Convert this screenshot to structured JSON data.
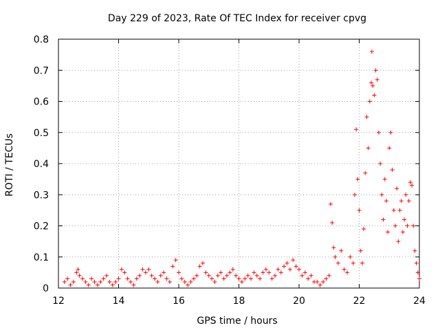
{
  "chart_data": {
    "type": "scatter",
    "title": "Day 229 of 2023, Rate Of TEC Index for receiver cpvg",
    "xlabel": "GPS time / hours",
    "ylabel": "ROTI / TECUs",
    "xlim": [
      12,
      24
    ],
    "ylim": [
      0,
      0.8
    ],
    "xticks": [
      "12",
      "14",
      "16",
      "18",
      "20",
      "22",
      "24"
    ],
    "xtick_values": [
      12,
      14,
      16,
      18,
      20,
      22,
      24
    ],
    "yticks": [
      "0",
      "0.1",
      "0.2",
      "0.3",
      "0.4",
      "0.5",
      "0.6",
      "0.7",
      "0.8"
    ],
    "ytick_values": [
      0,
      0.1,
      0.2,
      0.3,
      0.4,
      0.5,
      0.6,
      0.7,
      0.8
    ],
    "grid": true,
    "marker": "+",
    "color": "#ff0000",
    "series": [
      {
        "name": "ROTI",
        "points": [
          [
            12.2,
            0.02
          ],
          [
            12.3,
            0.03
          ],
          [
            12.4,
            0.01
          ],
          [
            12.5,
            0.02
          ],
          [
            12.6,
            0.05
          ],
          [
            12.65,
            0.06
          ],
          [
            12.7,
            0.04
          ],
          [
            12.8,
            0.03
          ],
          [
            12.9,
            0.02
          ],
          [
            13.0,
            0.01
          ],
          [
            13.1,
            0.03
          ],
          [
            13.2,
            0.02
          ],
          [
            13.3,
            0.01
          ],
          [
            13.4,
            0.02
          ],
          [
            13.5,
            0.03
          ],
          [
            13.6,
            0.04
          ],
          [
            13.7,
            0.02
          ],
          [
            13.8,
            0.01
          ],
          [
            13.9,
            0.02
          ],
          [
            14.0,
            0.03
          ],
          [
            14.1,
            0.06
          ],
          [
            14.2,
            0.05
          ],
          [
            14.3,
            0.03
          ],
          [
            14.4,
            0.02
          ],
          [
            14.5,
            0.01
          ],
          [
            14.6,
            0.03
          ],
          [
            14.7,
            0.04
          ],
          [
            14.8,
            0.06
          ],
          [
            14.9,
            0.05
          ],
          [
            15.0,
            0.06
          ],
          [
            15.1,
            0.04
          ],
          [
            15.2,
            0.03
          ],
          [
            15.3,
            0.02
          ],
          [
            15.4,
            0.04
          ],
          [
            15.5,
            0.05
          ],
          [
            15.6,
            0.03
          ],
          [
            15.7,
            0.02
          ],
          [
            15.8,
            0.07
          ],
          [
            15.9,
            0.09
          ],
          [
            16.0,
            0.05
          ],
          [
            16.1,
            0.03
          ],
          [
            16.2,
            0.02
          ],
          [
            16.3,
            0.01
          ],
          [
            16.4,
            0.02
          ],
          [
            16.5,
            0.03
          ],
          [
            16.6,
            0.04
          ],
          [
            16.7,
            0.07
          ],
          [
            16.8,
            0.08
          ],
          [
            16.9,
            0.05
          ],
          [
            17.0,
            0.04
          ],
          [
            17.1,
            0.03
          ],
          [
            17.2,
            0.02
          ],
          [
            17.3,
            0.04
          ],
          [
            17.4,
            0.05
          ],
          [
            17.5,
            0.03
          ],
          [
            17.6,
            0.04
          ],
          [
            17.7,
            0.05
          ],
          [
            17.8,
            0.06
          ],
          [
            17.9,
            0.04
          ],
          [
            18.0,
            0.03
          ],
          [
            18.1,
            0.02
          ],
          [
            18.2,
            0.03
          ],
          [
            18.3,
            0.04
          ],
          [
            18.4,
            0.03
          ],
          [
            18.5,
            0.05
          ],
          [
            18.6,
            0.04
          ],
          [
            18.7,
            0.03
          ],
          [
            18.8,
            0.05
          ],
          [
            18.9,
            0.06
          ],
          [
            19.0,
            0.05
          ],
          [
            19.1,
            0.03
          ],
          [
            19.2,
            0.04
          ],
          [
            19.3,
            0.06
          ],
          [
            19.4,
            0.05
          ],
          [
            19.5,
            0.07
          ],
          [
            19.6,
            0.08
          ],
          [
            19.7,
            0.06
          ],
          [
            19.8,
            0.09
          ],
          [
            19.9,
            0.07
          ],
          [
            20.0,
            0.06
          ],
          [
            20.1,
            0.04
          ],
          [
            20.2,
            0.05
          ],
          [
            20.3,
            0.03
          ],
          [
            20.4,
            0.04
          ],
          [
            20.5,
            0.02
          ],
          [
            20.6,
            0.02
          ],
          [
            20.7,
            0.01
          ],
          [
            20.8,
            0.02
          ],
          [
            20.9,
            0.03
          ],
          [
            21.0,
            0.04
          ],
          [
            21.05,
            0.27
          ],
          [
            21.1,
            0.21
          ],
          [
            21.15,
            0.13
          ],
          [
            21.2,
            0.1
          ],
          [
            21.3,
            0.08
          ],
          [
            21.4,
            0.12
          ],
          [
            21.5,
            0.06
          ],
          [
            21.6,
            0.05
          ],
          [
            21.7,
            0.1
          ],
          [
            21.8,
            0.08
          ],
          [
            21.85,
            0.3
          ],
          [
            21.9,
            0.51
          ],
          [
            21.95,
            0.35
          ],
          [
            22.0,
            0.25
          ],
          [
            22.05,
            0.12
          ],
          [
            22.1,
            0.08
          ],
          [
            22.15,
            0.19
          ],
          [
            22.2,
            0.37
          ],
          [
            22.25,
            0.55
          ],
          [
            22.3,
            0.45
          ],
          [
            22.35,
            0.6
          ],
          [
            22.4,
            0.66
          ],
          [
            22.42,
            0.76
          ],
          [
            22.45,
            0.65
          ],
          [
            22.5,
            0.62
          ],
          [
            22.55,
            0.7
          ],
          [
            22.6,
            0.67
          ],
          [
            22.65,
            0.5
          ],
          [
            22.7,
            0.4
          ],
          [
            22.75,
            0.3
          ],
          [
            22.8,
            0.22
          ],
          [
            22.85,
            0.35
          ],
          [
            22.9,
            0.28
          ],
          [
            22.95,
            0.18
          ],
          [
            23.0,
            0.45
          ],
          [
            23.05,
            0.5
          ],
          [
            23.1,
            0.38
          ],
          [
            23.15,
            0.25
          ],
          [
            23.2,
            0.2
          ],
          [
            23.25,
            0.32
          ],
          [
            23.3,
            0.15
          ],
          [
            23.35,
            0.25
          ],
          [
            23.4,
            0.28
          ],
          [
            23.45,
            0.18
          ],
          [
            23.5,
            0.22
          ],
          [
            23.55,
            0.3
          ],
          [
            23.6,
            0.2
          ],
          [
            23.65,
            0.28
          ],
          [
            23.7,
            0.34
          ],
          [
            23.75,
            0.33
          ],
          [
            23.8,
            0.2
          ],
          [
            23.85,
            0.12
          ],
          [
            23.9,
            0.08
          ],
          [
            23.95,
            0.05
          ],
          [
            24.0,
            0.03
          ]
        ]
      }
    ]
  }
}
